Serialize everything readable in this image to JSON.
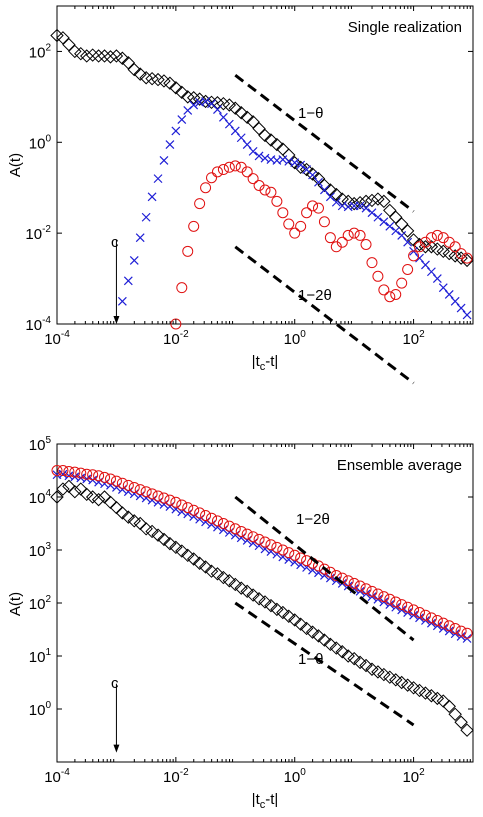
{
  "colors": {
    "diamond": "#000000",
    "cross": "#1f1fd6",
    "circle": "#e01010",
    "axis": "#000000"
  },
  "chart_data": [
    {
      "type": "scatter",
      "title": "Single realization",
      "xlabel": "|t_c-t|",
      "ylabel": "A(t)",
      "xscale": "log",
      "yscale": "log",
      "xlim": [
        0.0001,
        1000
      ],
      "ylim": [
        0.0001,
        1000
      ],
      "xticks": [
        0.0001,
        0.01,
        1,
        100
      ],
      "xtick_labels": [
        {
          "base": "10",
          "exp": "-4"
        },
        {
          "base": "10",
          "exp": "-2"
        },
        {
          "base": "10",
          "exp": "0"
        },
        {
          "base": "10",
          "exp": "2"
        }
      ],
      "yticks": [
        0.0001,
        0.01,
        1,
        100
      ],
      "ytick_labels": [
        {
          "base": "10",
          "exp": "-4"
        },
        {
          "base": "10",
          "exp": "-2"
        },
        {
          "base": "10",
          "exp": "0"
        },
        {
          "base": "10",
          "exp": "2"
        }
      ],
      "legend": "none",
      "grid": false,
      "annotations": {
        "line_upper_label": "1−θ",
        "line_lower_label": "1−2θ",
        "arrow_label": "c"
      },
      "arrow": {
        "x": 0.001,
        "y_from": 0.007,
        "y_to": 0.0001
      },
      "reference_lines": [
        {
          "x": [
            0.1,
            100
          ],
          "y": [
            30,
            0.03
          ]
        },
        {
          "x": [
            0.1,
            100
          ],
          "y": [
            0.005,
            5e-06
          ]
        }
      ],
      "series": [
        {
          "marker": "diamond",
          "log10x": [
            -4.0,
            -3.9,
            -3.8,
            -3.7,
            -3.6,
            -3.5,
            -3.4,
            -3.3,
            -3.2,
            -3.1,
            -3.0,
            -2.9,
            -2.8,
            -2.7,
            -2.6,
            -2.5,
            -2.4,
            -2.3,
            -2.2,
            -2.1,
            -2.0,
            -1.9,
            -1.8,
            -1.7,
            -1.6,
            -1.5,
            -1.4,
            -1.3,
            -1.2,
            -1.1,
            -1.0,
            -0.9,
            -0.8,
            -0.7,
            -0.6,
            -0.5,
            -0.4,
            -0.3,
            -0.2,
            -0.1,
            0.0,
            0.1,
            0.2,
            0.3,
            0.4,
            0.5,
            0.6,
            0.7,
            0.8,
            0.9,
            1.0,
            1.1,
            1.2,
            1.3,
            1.4,
            1.5,
            1.6,
            1.7,
            1.8,
            1.9,
            2.0,
            2.1,
            2.2,
            2.3,
            2.4,
            2.5,
            2.6,
            2.7,
            2.8,
            2.9
          ],
          "log10y": [
            2.35,
            2.3,
            2.15,
            2.0,
            1.95,
            1.9,
            1.92,
            1.9,
            1.9,
            1.88,
            1.9,
            1.85,
            1.75,
            1.6,
            1.5,
            1.42,
            1.4,
            1.38,
            1.35,
            1.3,
            1.2,
            1.1,
            1.0,
            0.98,
            0.95,
            0.9,
            0.88,
            0.87,
            0.85,
            0.82,
            0.75,
            0.65,
            0.55,
            0.45,
            0.3,
            0.15,
            0.05,
            -0.05,
            -0.15,
            -0.28,
            -0.45,
            -0.55,
            -0.6,
            -0.7,
            -0.8,
            -0.95,
            -1.05,
            -1.15,
            -1.25,
            -1.3,
            -1.35,
            -1.33,
            -1.3,
            -1.28,
            -1.25,
            -1.3,
            -1.5,
            -1.65,
            -1.8,
            -1.95,
            -2.15,
            -2.25,
            -2.3,
            -2.3,
            -2.35,
            -2.4,
            -2.45,
            -2.5,
            -2.55,
            -2.6
          ]
        },
        {
          "marker": "x",
          "log10x": [
            -2.9,
            -2.8,
            -2.7,
            -2.6,
            -2.5,
            -2.4,
            -2.3,
            -2.2,
            -2.1,
            -2.0,
            -1.9,
            -1.8,
            -1.7,
            -1.6,
            -1.5,
            -1.4,
            -1.3,
            -1.2,
            -1.1,
            -1.0,
            -0.9,
            -0.8,
            -0.7,
            -0.6,
            -0.5,
            -0.4,
            -0.3,
            -0.2,
            -0.1,
            0.0,
            0.1,
            0.2,
            0.3,
            0.4,
            0.5,
            0.6,
            0.7,
            0.8,
            0.9,
            1.0,
            1.1,
            1.2,
            1.3,
            1.4,
            1.5,
            1.6,
            1.7,
            1.8,
            1.9,
            2.0,
            2.1,
            2.2,
            2.3,
            2.4,
            2.5,
            2.6,
            2.7,
            2.8,
            2.9
          ],
          "log10y": [
            -3.5,
            -3.05,
            -2.6,
            -2.1,
            -1.65,
            -1.2,
            -0.8,
            -0.4,
            -0.05,
            0.25,
            0.5,
            0.7,
            0.82,
            0.88,
            0.9,
            0.85,
            0.72,
            0.55,
            0.4,
            0.25,
            0.1,
            -0.05,
            -0.2,
            -0.3,
            -0.35,
            -0.38,
            -0.4,
            -0.38,
            -0.42,
            -0.45,
            -0.5,
            -0.6,
            -0.72,
            -0.88,
            -1.05,
            -1.2,
            -1.32,
            -1.4,
            -1.42,
            -1.4,
            -1.4,
            -1.45,
            -1.55,
            -1.65,
            -1.75,
            -1.85,
            -1.95,
            -2.05,
            -2.2,
            -2.4,
            -2.55,
            -2.7,
            -2.85,
            -3.0,
            -3.2,
            -3.35,
            -3.5,
            -3.65,
            -3.8
          ]
        },
        {
          "marker": "circle",
          "log10x": [
            -2.0,
            -1.9,
            -1.8,
            -1.7,
            -1.6,
            -1.5,
            -1.4,
            -1.3,
            -1.2,
            -1.1,
            -1.0,
            -0.9,
            -0.8,
            -0.7,
            -0.6,
            -0.5,
            -0.4,
            -0.3,
            -0.2,
            -0.1,
            0.0,
            0.1,
            0.2,
            0.3,
            0.4,
            0.5,
            0.6,
            0.7,
            0.8,
            0.9,
            1.0,
            1.1,
            1.2,
            1.3,
            1.4,
            1.5,
            1.6,
            1.7,
            1.8,
            1.9,
            2.0,
            2.1,
            2.2,
            2.3,
            2.4,
            2.5,
            2.6,
            2.7,
            2.8,
            2.9
          ],
          "log10y": [
            -4.0,
            -3.2,
            -2.4,
            -1.85,
            -1.35,
            -1.0,
            -0.78,
            -0.65,
            -0.6,
            -0.55,
            -0.52,
            -0.55,
            -0.65,
            -0.8,
            -0.95,
            -1.05,
            -1.1,
            -1.3,
            -1.55,
            -1.8,
            -2.0,
            -1.85,
            -1.55,
            -1.4,
            -1.45,
            -1.75,
            -2.1,
            -2.3,
            -2.2,
            -2.05,
            -2.0,
            -2.05,
            -2.25,
            -2.65,
            -2.95,
            -3.25,
            -3.4,
            -3.35,
            -3.1,
            -2.8,
            -2.5,
            -2.3,
            -2.2,
            -2.1,
            -2.05,
            -2.1,
            -2.2,
            -2.3,
            -2.45,
            -2.55
          ]
        }
      ]
    },
    {
      "type": "scatter",
      "title": "Ensemble average",
      "xlabel": "|t_c-t|",
      "ylabel": "A(t)",
      "xscale": "log",
      "yscale": "log",
      "xlim": [
        0.0001,
        1000
      ],
      "ylim": [
        0.1,
        100000
      ],
      "xticks": [
        0.0001,
        0.01,
        1,
        100
      ],
      "xtick_labels": [
        {
          "base": "10",
          "exp": "-4"
        },
        {
          "base": "10",
          "exp": "-2"
        },
        {
          "base": "10",
          "exp": "0"
        },
        {
          "base": "10",
          "exp": "2"
        }
      ],
      "yticks": [
        1,
        10,
        100,
        1000,
        10000,
        100000
      ],
      "ytick_labels": [
        {
          "base": "10",
          "exp": "0"
        },
        {
          "base": "10",
          "exp": "1"
        },
        {
          "base": "10",
          "exp": "2"
        },
        {
          "base": "10",
          "exp": "3"
        },
        {
          "base": "10",
          "exp": "4"
        },
        {
          "base": "10",
          "exp": "5"
        }
      ],
      "legend": "none",
      "grid": false,
      "annotations": {
        "line_upper_label": "1−2θ",
        "line_lower_label": "1−θ",
        "arrow_label": "c"
      },
      "arrow": {
        "x": 0.001,
        "y_from": 3,
        "y_to": 0.15
      },
      "reference_lines": [
        {
          "x": [
            0.1,
            100
          ],
          "y": [
            10000,
            20
          ]
        },
        {
          "x": [
            0.1,
            100
          ],
          "y": [
            100,
            0.5
          ]
        }
      ],
      "series": [
        {
          "marker": "diamond",
          "log10x": [
            -4.0,
            -3.9,
            -3.8,
            -3.7,
            -3.6,
            -3.5,
            -3.4,
            -3.3,
            -3.2,
            -3.1,
            -3.0,
            -2.9,
            -2.8,
            -2.7,
            -2.6,
            -2.5,
            -2.4,
            -2.3,
            -2.2,
            -2.1,
            -2.0,
            -1.9,
            -1.8,
            -1.7,
            -1.6,
            -1.5,
            -1.4,
            -1.3,
            -1.2,
            -1.1,
            -1.0,
            -0.9,
            -0.8,
            -0.7,
            -0.6,
            -0.5,
            -0.4,
            -0.3,
            -0.2,
            -0.1,
            0.0,
            0.1,
            0.2,
            0.3,
            0.4,
            0.5,
            0.6,
            0.7,
            0.8,
            0.9,
            1.0,
            1.1,
            1.2,
            1.3,
            1.4,
            1.5,
            1.6,
            1.7,
            1.8,
            1.9,
            2.0,
            2.1,
            2.2,
            2.3,
            2.4,
            2.5,
            2.6,
            2.7,
            2.8,
            2.9
          ],
          "log10y": [
            4.0,
            4.15,
            4.2,
            4.1,
            4.15,
            4.05,
            4.0,
            3.95,
            4.0,
            3.9,
            3.8,
            3.7,
            3.62,
            3.55,
            3.5,
            3.4,
            3.35,
            3.28,
            3.2,
            3.12,
            3.05,
            2.98,
            2.9,
            2.83,
            2.75,
            2.68,
            2.6,
            2.55,
            2.48,
            2.42,
            2.35,
            2.28,
            2.22,
            2.15,
            2.08,
            2.02,
            1.95,
            1.88,
            1.82,
            1.75,
            1.68,
            1.6,
            1.52,
            1.45,
            1.38,
            1.3,
            1.22,
            1.15,
            1.08,
            1.0,
            0.95,
            0.88,
            0.82,
            0.75,
            0.7,
            0.65,
            0.6,
            0.55,
            0.5,
            0.45,
            0.4,
            0.35,
            0.3,
            0.25,
            0.2,
            0.15,
            0.05,
            -0.1,
            -0.25,
            -0.4
          ]
        },
        {
          "marker": "x",
          "log10x": [
            -4.0,
            -3.9,
            -3.8,
            -3.7,
            -3.6,
            -3.5,
            -3.4,
            -3.3,
            -3.2,
            -3.1,
            -3.0,
            -2.9,
            -2.8,
            -2.7,
            -2.6,
            -2.5,
            -2.4,
            -2.3,
            -2.2,
            -2.1,
            -2.0,
            -1.9,
            -1.8,
            -1.7,
            -1.6,
            -1.5,
            -1.4,
            -1.3,
            -1.2,
            -1.1,
            -1.0,
            -0.9,
            -0.8,
            -0.7,
            -0.6,
            -0.5,
            -0.4,
            -0.3,
            -0.2,
            -0.1,
            0.0,
            0.1,
            0.2,
            0.3,
            0.4,
            0.5,
            0.6,
            0.7,
            0.8,
            0.9,
            1.0,
            1.1,
            1.2,
            1.3,
            1.4,
            1.5,
            1.6,
            1.7,
            1.8,
            1.9,
            2.0,
            2.1,
            2.2,
            2.3,
            2.4,
            2.5,
            2.6,
            2.7,
            2.8,
            2.9
          ],
          "log10y": [
            4.42,
            4.43,
            4.4,
            4.38,
            4.36,
            4.34,
            4.32,
            4.28,
            4.25,
            4.22,
            4.18,
            4.14,
            4.1,
            4.06,
            4.02,
            3.98,
            3.94,
            3.9,
            3.86,
            3.82,
            3.77,
            3.72,
            3.68,
            3.63,
            3.58,
            3.53,
            3.48,
            3.43,
            3.38,
            3.33,
            3.28,
            3.23,
            3.18,
            3.13,
            3.08,
            3.02,
            2.97,
            2.92,
            2.87,
            2.82,
            2.77,
            2.72,
            2.67,
            2.62,
            2.57,
            2.52,
            2.47,
            2.42,
            2.37,
            2.32,
            2.27,
            2.22,
            2.17,
            2.12,
            2.07,
            2.02,
            1.97,
            1.92,
            1.87,
            1.82,
            1.77,
            1.72,
            1.67,
            1.62,
            1.57,
            1.52,
            1.47,
            1.42,
            1.37,
            1.33
          ]
        },
        {
          "marker": "circle",
          "log10x": [
            -4.0,
            -3.9,
            -3.8,
            -3.7,
            -3.6,
            -3.5,
            -3.4,
            -3.3,
            -3.2,
            -3.1,
            -3.0,
            -2.9,
            -2.8,
            -2.7,
            -2.6,
            -2.5,
            -2.4,
            -2.3,
            -2.2,
            -2.1,
            -2.0,
            -1.9,
            -1.8,
            -1.7,
            -1.6,
            -1.5,
            -1.4,
            -1.3,
            -1.2,
            -1.1,
            -1.0,
            -0.9,
            -0.8,
            -0.7,
            -0.6,
            -0.5,
            -0.4,
            -0.3,
            -0.2,
            -0.1,
            0.0,
            0.1,
            0.2,
            0.3,
            0.4,
            0.5,
            0.6,
            0.7,
            0.8,
            0.9,
            1.0,
            1.1,
            1.2,
            1.3,
            1.4,
            1.5,
            1.6,
            1.7,
            1.8,
            1.9,
            2.0,
            2.1,
            2.2,
            2.3,
            2.4,
            2.5,
            2.6,
            2.7,
            2.8,
            2.9
          ],
          "log10y": [
            4.5,
            4.5,
            4.48,
            4.47,
            4.45,
            4.43,
            4.42,
            4.4,
            4.37,
            4.34,
            4.3,
            4.26,
            4.22,
            4.18,
            4.14,
            4.1,
            4.06,
            4.02,
            3.98,
            3.94,
            3.9,
            3.85,
            3.8,
            3.75,
            3.7,
            3.65,
            3.6,
            3.55,
            3.5,
            3.45,
            3.4,
            3.35,
            3.3,
            3.25,
            3.2,
            3.15,
            3.1,
            3.05,
            3.0,
            2.95,
            2.9,
            2.85,
            2.8,
            2.75,
            2.7,
            2.64,
            2.58,
            2.52,
            2.47,
            2.42,
            2.37,
            2.32,
            2.27,
            2.22,
            2.17,
            2.12,
            2.07,
            2.02,
            1.97,
            1.92,
            1.87,
            1.82,
            1.77,
            1.72,
            1.67,
            1.62,
            1.57,
            1.52,
            1.47,
            1.43
          ]
        }
      ]
    }
  ]
}
